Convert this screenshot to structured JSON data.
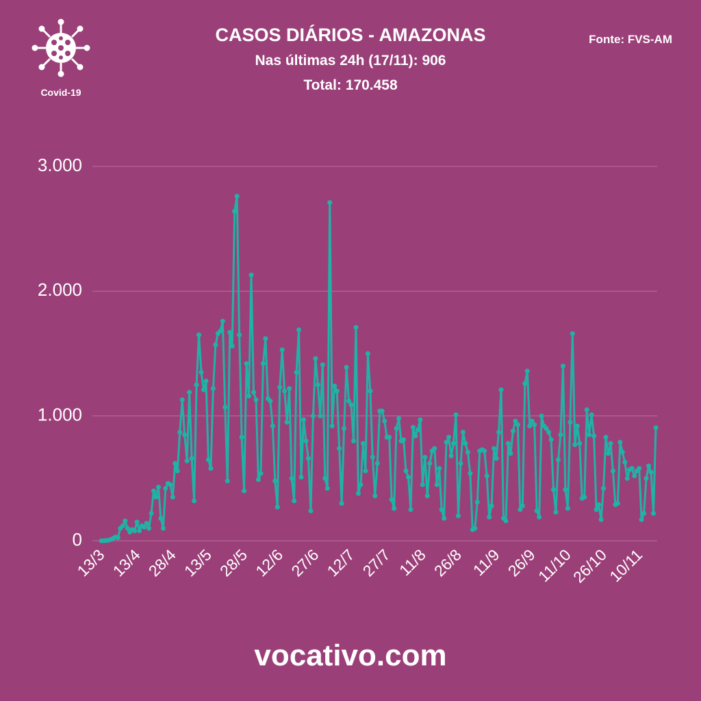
{
  "chart_data": {
    "type": "line",
    "title": "CASOS DIÁRIOS - AMAZONAS",
    "subtitle": "Nas últimas 24h (17/11): 906",
    "total": "Total: 170.458",
    "source": "Fonte: FVS-AM",
    "icon_label": "Covid-19",
    "footer": "vocativo.com",
    "categories": [
      "13/3",
      null,
      null,
      null,
      null,
      null,
      null,
      null,
      null,
      null,
      null,
      null,
      null,
      null,
      null,
      "13/4",
      null,
      null,
      null,
      null,
      null,
      null,
      null,
      null,
      null,
      null,
      null,
      null,
      null,
      null,
      "28/4",
      null,
      null,
      null,
      null,
      null,
      null,
      null,
      null,
      null,
      null,
      null,
      null,
      null,
      null,
      "13/5",
      null,
      null,
      null,
      null,
      null,
      null,
      null,
      null,
      null,
      null,
      null,
      null,
      null,
      null,
      "28/5",
      null,
      null,
      null,
      null,
      null,
      null,
      null,
      null,
      null,
      null,
      null,
      null,
      null,
      null,
      "12/6",
      null,
      null,
      null,
      null,
      null,
      null,
      null,
      null,
      null,
      null,
      null,
      null,
      null,
      null,
      "27/6",
      null,
      null,
      null,
      null,
      null,
      null,
      null,
      null,
      null,
      null,
      null,
      null,
      null,
      null,
      "12/7",
      null,
      null,
      null,
      null,
      null,
      null,
      null,
      null,
      null,
      null,
      null,
      null,
      null,
      null,
      "27/7",
      null,
      null,
      null,
      null,
      null,
      null,
      null,
      null,
      null,
      null,
      null,
      null,
      null,
      null,
      "11/8",
      null,
      null,
      null,
      null,
      null,
      null,
      null,
      null,
      null,
      null,
      null,
      null,
      null,
      null,
      "26/8",
      null,
      null,
      null,
      null,
      null,
      null,
      null,
      null,
      null,
      null,
      null,
      null,
      null,
      null,
      null,
      "11/9",
      null,
      null,
      null,
      null,
      null,
      null,
      null,
      null,
      null,
      null,
      null,
      null,
      null,
      null,
      "26/9",
      null,
      null,
      null,
      null,
      null,
      null,
      null,
      null,
      null,
      null,
      null,
      null,
      null,
      null,
      "11/10",
      null,
      null,
      null,
      null,
      null,
      null,
      null,
      null,
      null,
      null,
      null,
      null,
      null,
      null,
      "26/10",
      null,
      null,
      null,
      null,
      null,
      null,
      null,
      null,
      null,
      null,
      null,
      null,
      null,
      null,
      "10/11",
      null,
      null,
      null,
      null,
      null,
      null,
      null
    ],
    "series": [
      {
        "name": "Casos diários",
        "color": "#1fb3a6",
        "values": [
          0,
          1,
          2,
          5,
          10,
          20,
          30,
          25,
          100,
          120,
          160,
          100,
          70,
          90,
          80,
          150,
          80,
          120,
          110,
          140,
          100,
          220,
          400,
          350,
          430,
          180,
          100,
          420,
          460,
          450,
          350,
          620,
          560,
          870,
          1130,
          850,
          640,
          1190,
          660,
          320,
          1250,
          1650,
          1350,
          1210,
          1280,
          650,
          580,
          1220,
          1570,
          1660,
          1680,
          1760,
          1070,
          480,
          1670,
          1560,
          2640,
          2760,
          1650,
          830,
          400,
          1420,
          1160,
          2130,
          1190,
          1130,
          490,
          540,
          1420,
          1620,
          1140,
          1120,
          920,
          480,
          270,
          1230,
          1530,
          1200,
          950,
          1220,
          500,
          320,
          1350,
          1690,
          510,
          970,
          800,
          660,
          240,
          1000,
          1460,
          1250,
          1000,
          1410,
          500,
          420,
          2710,
          920,
          1240,
          1200,
          740,
          300,
          900,
          1390,
          1120,
          1090,
          800,
          1710,
          380,
          450,
          780,
          560,
          1500,
          1200,
          670,
          360,
          620,
          1040,
          1040,
          960,
          830,
          830,
          330,
          260,
          900,
          980,
          800,
          810,
          560,
          510,
          250,
          910,
          840,
          890,
          970,
          450,
          670,
          360,
          620,
          720,
          740,
          450,
          580,
          250,
          180,
          790,
          830,
          680,
          780,
          1010,
          200,
          620,
          870,
          780,
          710,
          540,
          90,
          100,
          310,
          720,
          730,
          720,
          520,
          190,
          280,
          740,
          660,
          870,
          1210,
          180,
          160,
          780,
          700,
          880,
          960,
          930,
          250,
          280,
          1260,
          1360,
          920,
          960,
          930,
          240,
          190,
          1000,
          920,
          900,
          870,
          810,
          410,
          230,
          650,
          850,
          1400,
          410,
          260,
          950,
          1660,
          770,
          920,
          780,
          340,
          350,
          1050,
          850,
          1010,
          840,
          250,
          290,
          170,
          420,
          830,
          700,
          780,
          560,
          290,
          300,
          790,
          710,
          630,
          500,
          570,
          580,
          520,
          560,
          580,
          170,
          220,
          500,
          600,
          550,
          220,
          906
        ]
      }
    ],
    "ylim": [
      0,
      3000
    ],
    "yticks": [
      0,
      {
        "value": 1000,
        "label": "1.000"
      },
      {
        "value": 2000,
        "label": "2.000"
      },
      {
        "value": 3000,
        "label": "3.000"
      }
    ],
    "grid": true
  }
}
